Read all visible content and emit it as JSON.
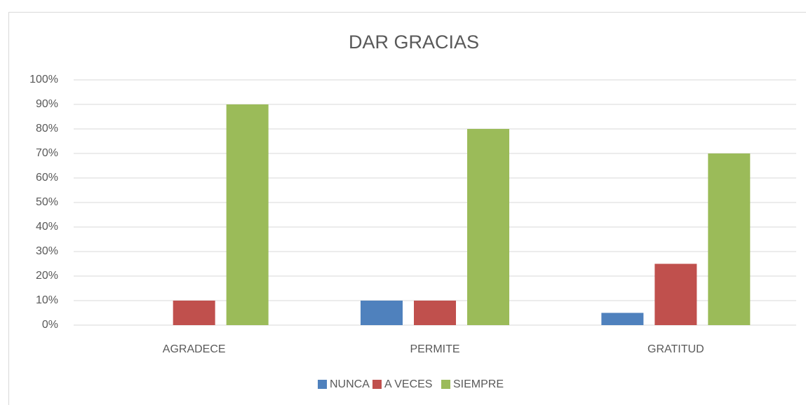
{
  "chart_data": {
    "type": "bar",
    "title": "DAR GRACIAS",
    "categories": [
      "AGRADECE",
      "PERMITE",
      "GRATITUD"
    ],
    "series": [
      {
        "name": "NUNCA",
        "color": "#4f81bd",
        "values": [
          0,
          10,
          5
        ]
      },
      {
        "name": "A VECES",
        "color": "#c0504d",
        "values": [
          10,
          10,
          25
        ]
      },
      {
        "name": "SIEMPRE",
        "color": "#9bbb59",
        "values": [
          90,
          80,
          70
        ]
      }
    ],
    "ylim": [
      0,
      100
    ],
    "yticks": [
      {
        "value": 0,
        "label": "0%"
      },
      {
        "value": 10,
        "label": "10%"
      },
      {
        "value": 20,
        "label": "20%"
      },
      {
        "value": 30,
        "label": "30%"
      },
      {
        "value": 40,
        "label": "40%"
      },
      {
        "value": 50,
        "label": "50%"
      },
      {
        "value": 60,
        "label": "60%"
      },
      {
        "value": 70,
        "label": "70%"
      },
      {
        "value": 80,
        "label": "80%"
      },
      {
        "value": 90,
        "label": "90%"
      },
      {
        "value": 100,
        "label": "100%"
      }
    ],
    "grid": true,
    "legend": "bottom"
  }
}
